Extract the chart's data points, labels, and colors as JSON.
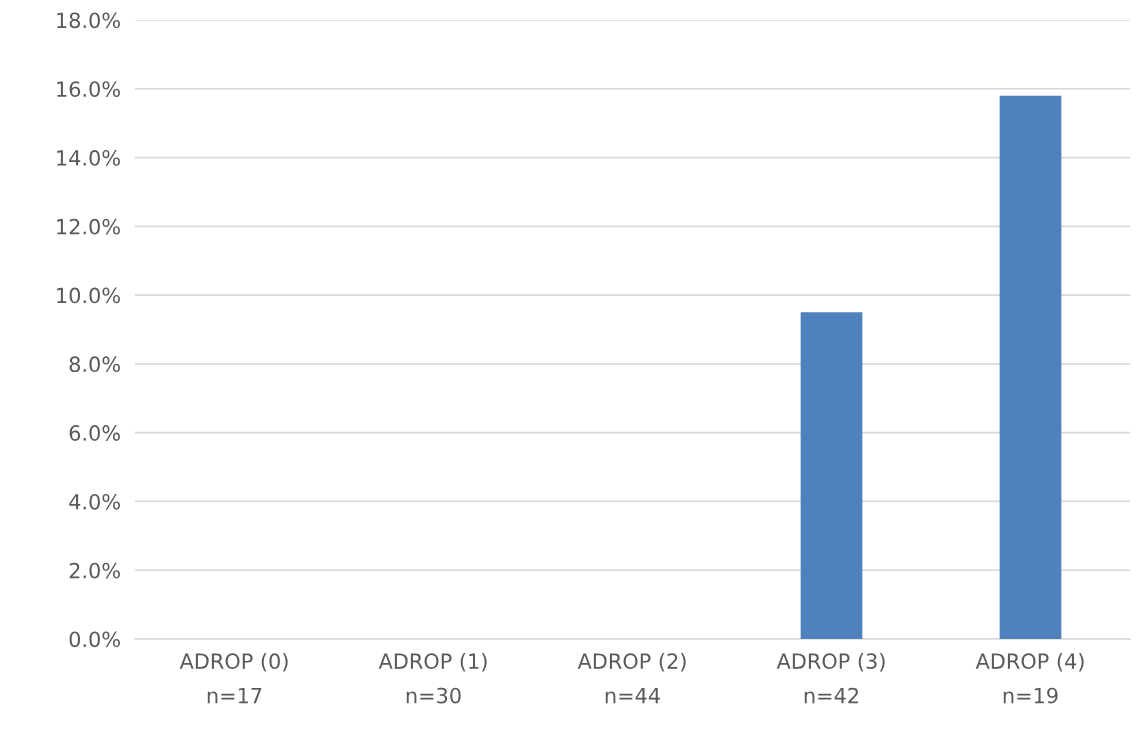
{
  "chart_data": {
    "type": "bar",
    "categories": [
      "ADROP (0)\nn=17",
      "ADROP (1)\nn=30",
      "ADROP (2)\nn=44",
      "ADROP (3)\nn=42",
      "ADROP (4)\nn=19"
    ],
    "values": [
      0,
      0,
      0,
      9.5,
      15.8
    ],
    "color": "#4f81bd",
    "ylim": [
      0,
      18
    ],
    "yticks": [
      {
        "value": 0,
        "label": "0.0%"
      },
      {
        "value": 2,
        "label": "2.0%"
      },
      {
        "value": 4,
        "label": "4.0%"
      },
      {
        "value": 6,
        "label": "6.0%"
      },
      {
        "value": 8,
        "label": "8.0%"
      },
      {
        "value": 10,
        "label": "10.0%"
      },
      {
        "value": 12,
        "label": "12.0%"
      },
      {
        "value": 14,
        "label": "14.0%"
      },
      {
        "value": 16,
        "label": "16.0%"
      },
      {
        "value": 18,
        "label": "18.0%"
      }
    ],
    "grid": "y"
  }
}
